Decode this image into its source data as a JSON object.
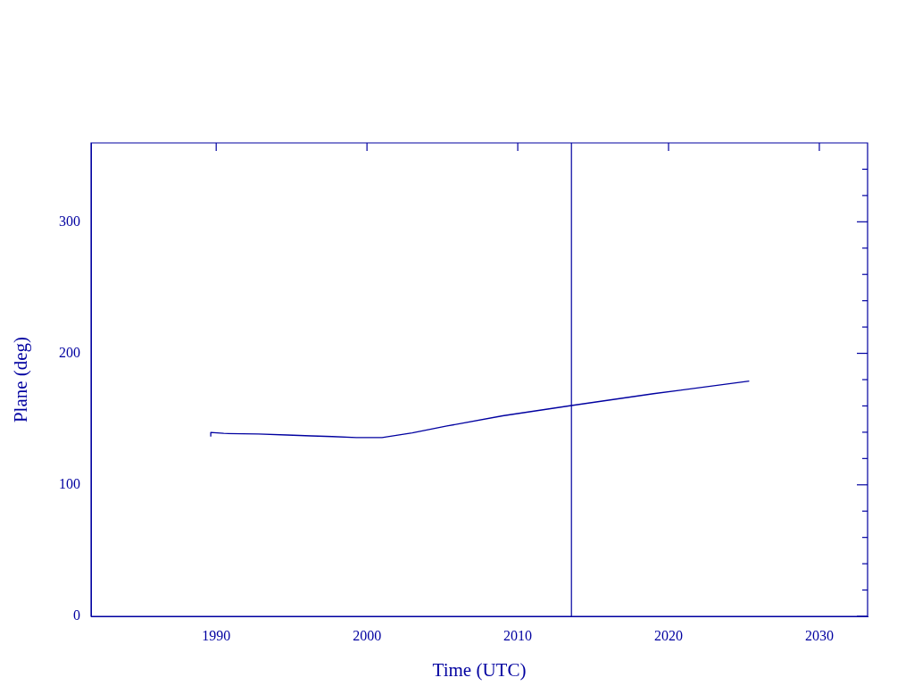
{
  "chart_data": {
    "type": "line",
    "xlabel": "Time (UTC)",
    "ylabel": "Plane (deg)",
    "x": [
      1989.64,
      1989.64,
      1990.5,
      1992.8,
      1994.7,
      1996.3,
      1997.7,
      1999.3,
      2001.0,
      2003.0,
      2005.3,
      2009.0,
      2013.56,
      2019.0,
      2025.35
    ],
    "series": [
      {
        "color": "#0000a0",
        "values": [
          136.7,
          139.9,
          139.1,
          138.6,
          137.9,
          137.2,
          136.7,
          136.0,
          136.0,
          139.5,
          144.7,
          152.5,
          160.3,
          169.3,
          178.9
        ]
      }
    ],
    "xlim": [
      1981.7,
      2033.2
    ],
    "xticks": [
      1990,
      2000,
      2010,
      2020,
      2030
    ],
    "ylim": [
      0,
      360
    ],
    "yticks": [
      0,
      {
        "value": 20,
        "label": null
      },
      {
        "value": 40,
        "label": null
      },
      {
        "value": 60,
        "label": null
      },
      {
        "value": 80,
        "label": null
      },
      100,
      {
        "value": 120,
        "label": null
      },
      {
        "value": 140,
        "label": null
      },
      {
        "value": 160,
        "label": null
      },
      {
        "value": 180,
        "label": null
      },
      200,
      {
        "value": 220,
        "label": null
      },
      {
        "value": 240,
        "label": null
      },
      {
        "value": 260,
        "label": null
      },
      {
        "value": 280,
        "label": null
      },
      300,
      {
        "value": 320,
        "label": null
      },
      {
        "value": 340,
        "label": null
      }
    ],
    "ref_lines": [
      {
        "axis": "x",
        "value": 2013.56,
        "color": "#0000a0"
      }
    ],
    "marker": "none",
    "line_style": "solid",
    "legend": false
  }
}
